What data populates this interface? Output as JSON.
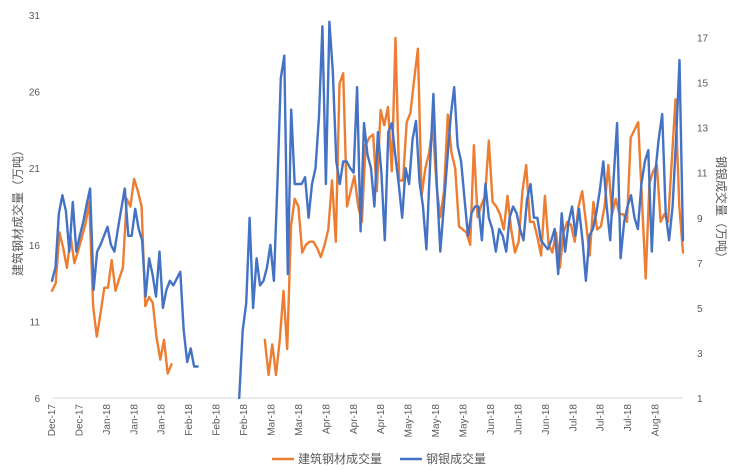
{
  "chart_data": {
    "type": "line",
    "title": "",
    "legend": {
      "position": "bottom"
    },
    "grid": false,
    "left_axis": {
      "label": "建筑钢材成交量（万吨）",
      "ylim": [
        6,
        31
      ],
      "ticks": [
        6,
        11,
        16,
        21,
        26,
        31
      ]
    },
    "right_axis": {
      "label": "钢银成交量（万吨）",
      "ylim": [
        1,
        18
      ],
      "ticks": [
        1,
        3,
        5,
        7,
        9,
        11,
        13,
        15,
        17
      ]
    },
    "x_tick_labels": [
      "Dec-17",
      "Dec-17",
      "Jan-18",
      "Jan-18",
      "Jan-18",
      "Feb-18",
      "Feb-18",
      "Feb-18",
      "Mar-18",
      "Mar-18",
      "Apr-18",
      "Apr-18",
      "Apr-18",
      "May-18",
      "May-18",
      "May-18",
      "Jun-18",
      "Jun-18",
      "Jun-18",
      "Jul-18",
      "Jul-18",
      "Jul-18",
      "Aug-18"
    ],
    "series": [
      {
        "name": "建筑钢材成交量",
        "axis": "left",
        "color": "#ED7D31",
        "values": [
          13,
          13.5,
          16.8,
          15.8,
          14.5,
          16.5,
          14.8,
          15.6,
          16.5,
          17.4,
          18.8,
          12,
          10,
          11.5,
          13.2,
          13.2,
          15,
          13,
          13.8,
          14.5,
          19,
          18.5,
          20.3,
          19.5,
          18.5,
          12,
          12.6,
          12.2,
          10,
          8.5,
          9.8,
          7.6,
          8.2,
          null,
          null,
          null,
          null,
          null,
          null,
          null,
          null,
          null,
          null,
          null,
          null,
          null,
          null,
          null,
          null,
          null,
          null,
          null,
          null,
          null,
          null,
          null,
          null,
          9.8,
          7.5,
          9.5,
          7.5,
          9.8,
          13,
          9.2,
          17.2,
          19,
          18.5,
          15.5,
          16,
          16.2,
          16.2,
          15.8,
          15.2,
          16,
          17,
          20.2,
          16.2,
          26.5,
          27.2,
          18.5,
          19.5,
          20.5,
          18.5,
          17.5,
          22.5,
          23,
          23.2,
          19.5,
          24.8,
          23.8,
          25,
          20.8,
          29.5,
          20.2,
          20.2,
          24,
          24.6,
          26.8,
          28.8,
          19.2,
          21,
          22,
          23.8,
          19.8,
          17.8,
          19.5,
          24.5,
          22,
          21,
          17.2,
          17,
          16.8,
          16,
          22.5,
          17.8,
          18.6,
          19.2,
          22.8,
          18.8,
          18.5,
          18,
          17,
          19.2,
          17,
          15.5,
          16.2,
          19.5,
          21.2,
          17.5,
          17.5,
          16.5,
          15.3,
          19.2,
          16,
          15.5,
          16.8,
          14.5,
          16.8,
          17.5,
          17.3,
          16.2,
          18.5,
          19.5,
          17.5,
          15.3,
          18.8,
          17,
          17.2,
          18.5,
          21.2,
          18,
          19,
          18,
          18,
          17.5,
          23,
          23.5,
          24,
          19,
          13.8,
          20,
          20.8,
          21.2,
          17.5,
          18,
          17.5,
          21.5,
          25.5,
          18.5,
          15.5
        ]
      },
      {
        "name": "钢银成交量",
        "axis": "right",
        "color": "#4472C4",
        "values": [
          6.2,
          6.8,
          9.2,
          10,
          9.3,
          7.5,
          9.7,
          7.5,
          8.2,
          8.8,
          9.6,
          10.3,
          5.8,
          7.5,
          7.8,
          8.2,
          8.6,
          7.8,
          7.5,
          8.5,
          9.4,
          10.3,
          8.2,
          8.2,
          9.4,
          8.5,
          8,
          5.5,
          7.2,
          6.5,
          5.5,
          7.5,
          5,
          5.8,
          6.2,
          6,
          6.3,
          6.6,
          4,
          2.6,
          3.2,
          2.4,
          2.4,
          null,
          null,
          null,
          null,
          null,
          null,
          null,
          null,
          null,
          null,
          null,
          1,
          4,
          5.2,
          9,
          5,
          7.2,
          6,
          6.2,
          6.8,
          7.8,
          6.2,
          10.5,
          15.2,
          16.2,
          6.5,
          13.8,
          10.5,
          10.5,
          10.5,
          10.8,
          9,
          10.5,
          11.2,
          13.5,
          17.5,
          10.5,
          17.7,
          15.5,
          11.5,
          10.5,
          11.5,
          11.5,
          11.2,
          11,
          14.8,
          8.4,
          13.2,
          11.8,
          11.2,
          9.5,
          12.8,
          11,
          8,
          12.8,
          13.2,
          11.8,
          10.5,
          9,
          11.2,
          10.5,
          12.5,
          13.3,
          10.6,
          9.5,
          7.6,
          11.2,
          14.5,
          10.5,
          7.5,
          9.5,
          11.5,
          13.5,
          14.8,
          12.2,
          11.5,
          9.8,
          8.2,
          9.2,
          9.5,
          9.5,
          8,
          10.5,
          9,
          8.5,
          7.5,
          8.5,
          8.2,
          7.5,
          9,
          9.5,
          9.2,
          8.5,
          8,
          9.8,
          10.5,
          9,
          9,
          8,
          7.8,
          7.6,
          8,
          8.5,
          6.5,
          9.2,
          7.5,
          8.8,
          9.5,
          8.2,
          9.4,
          8,
          6.2,
          8.2,
          8.5,
          9.2,
          10.2,
          11.5,
          9.5,
          8,
          10.8,
          13.2,
          7.2,
          8.8,
          9.5,
          10,
          9,
          8.5,
          10.5,
          11.5,
          12,
          7.5,
          11,
          12.5,
          13.6,
          9.2,
          8,
          9.5,
          12.5,
          16,
          8
        ]
      }
    ]
  }
}
